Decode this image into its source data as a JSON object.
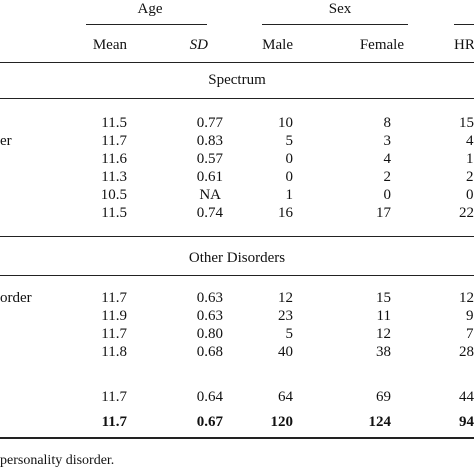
{
  "header": {
    "age_group": "Age",
    "sex_group": "Sex",
    "mean": "Mean",
    "sd": "SD",
    "male": "Male",
    "female": "Female",
    "hr_partial": "HR"
  },
  "sections": {
    "spectrum": "Spectrum",
    "other": "Other Disorders"
  },
  "row_label_fragments": {
    "r1": "er",
    "r7": "order"
  },
  "rows": [
    {
      "mean": "11.5",
      "sd": "0.77",
      "male": "10",
      "female": "8",
      "hr": "15"
    },
    {
      "mean": "11.7",
      "sd": "0.83",
      "male": "5",
      "female": "3",
      "hr": "4"
    },
    {
      "mean": "11.6",
      "sd": "0.57",
      "male": "0",
      "female": "4",
      "hr": "1"
    },
    {
      "mean": "11.3",
      "sd": "0.61",
      "male": "0",
      "female": "2",
      "hr": "2"
    },
    {
      "mean": "10.5",
      "sd": "NA",
      "male": "1",
      "female": "0",
      "hr": "0"
    },
    {
      "mean": "11.5",
      "sd": "0.74",
      "male": "16",
      "female": "17",
      "hr": "22"
    },
    {
      "mean": "11.7",
      "sd": "0.63",
      "male": "12",
      "female": "15",
      "hr": "12"
    },
    {
      "mean": "11.9",
      "sd": "0.63",
      "male": "23",
      "female": "11",
      "hr": "9"
    },
    {
      "mean": "11.7",
      "sd": "0.80",
      "male": "5",
      "female": "12",
      "hr": "7"
    },
    {
      "mean": "11.8",
      "sd": "0.68",
      "male": "40",
      "female": "38",
      "hr": "28"
    },
    {
      "mean": "11.7",
      "sd": "0.64",
      "male": "64",
      "female": "69",
      "hr": "44"
    },
    {
      "mean": "11.7",
      "sd": "0.67",
      "male": "120",
      "female": "124",
      "hr": "94"
    }
  ],
  "footnote": "personality disorder."
}
